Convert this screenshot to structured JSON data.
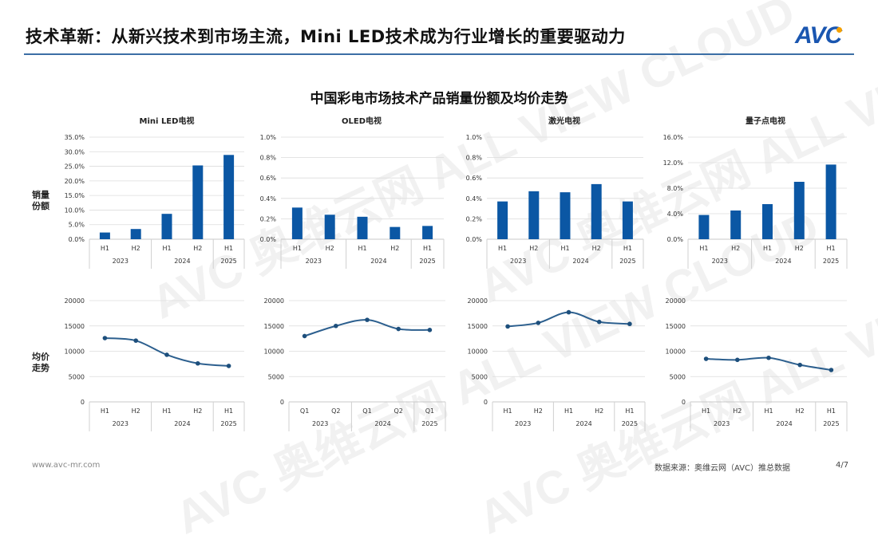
{
  "header": {
    "title": "技术革新：从新兴技术到市场主流，Mini LED技术成为行业增长的重要驱动力",
    "logo": "AVC"
  },
  "main_title": "中国彩电市场技术产品销量份额及均价走势",
  "row_labels": {
    "share": "销量\n份额",
    "price": "均价\n走势"
  },
  "watermark": "AVC 奥维云网 ALL VIEW CLOUD",
  "footer": {
    "website": "www.avc-mr.com",
    "source": "数据来源：奥维云网（AVC）推总数据",
    "page": "4/7"
  },
  "colors": {
    "bar": "#0b57a4",
    "line": "#2c5f8e",
    "marker": "#1d4f7c",
    "rule": "#3b6ea5"
  },
  "chart_data": [
    {
      "type": "bar",
      "title": "Mini LED电视",
      "categories": [
        "H1",
        "H2",
        "H1",
        "H2",
        "H1"
      ],
      "groups": [
        {
          "label": "2023",
          "span": 2
        },
        {
          "label": "2024",
          "span": 2
        },
        {
          "label": "2025",
          "span": 1
        }
      ],
      "values": [
        2.3,
        3.5,
        8.7,
        25.3,
        28.9
      ],
      "ylim": [
        0,
        35
      ],
      "yticks": [
        "0.0%",
        "5.0%",
        "10.0%",
        "15.0%",
        "20.0%",
        "25.0%",
        "30.0%",
        "35.0%"
      ],
      "unit": "%",
      "grid": true
    },
    {
      "type": "bar",
      "title": "OLED电视",
      "categories": [
        "H1",
        "H2",
        "H1",
        "H2",
        "H1"
      ],
      "groups": [
        {
          "label": "2023",
          "span": 2
        },
        {
          "label": "2024",
          "span": 2
        },
        {
          "label": "2025",
          "span": 1
        }
      ],
      "values": [
        0.31,
        0.24,
        0.22,
        0.12,
        0.13
      ],
      "ylim": [
        0,
        1
      ],
      "yticks": [
        "0.0%",
        "0.2%",
        "0.4%",
        "0.6%",
        "0.8%",
        "1.0%"
      ],
      "unit": "%",
      "grid": true
    },
    {
      "type": "bar",
      "title": "激光电视",
      "categories": [
        "H1",
        "H2",
        "H1",
        "H2",
        "H1"
      ],
      "groups": [
        {
          "label": "2023",
          "span": 2
        },
        {
          "label": "2024",
          "span": 2
        },
        {
          "label": "2025",
          "span": 1
        }
      ],
      "values": [
        0.37,
        0.47,
        0.46,
        0.54,
        0.37
      ],
      "ylim": [
        0,
        1
      ],
      "yticks": [
        "0.0%",
        "0.2%",
        "0.4%",
        "0.6%",
        "0.8%",
        "1.0%"
      ],
      "unit": "%",
      "grid": true
    },
    {
      "type": "bar",
      "title": "量子点电视",
      "categories": [
        "H1",
        "H2",
        "H1",
        "H2",
        "H1"
      ],
      "groups": [
        {
          "label": "2023",
          "span": 2
        },
        {
          "label": "2024",
          "span": 2
        },
        {
          "label": "2025",
          "span": 1
        }
      ],
      "values": [
        3.8,
        4.5,
        5.5,
        9.0,
        11.7
      ],
      "ylim": [
        0,
        16
      ],
      "yticks": [
        "0.0%",
        "4.0%",
        "8.0%",
        "12.0%",
        "16.0%"
      ],
      "unit": "%",
      "grid": true
    },
    {
      "type": "line",
      "categories": [
        "H1",
        "H2",
        "H1",
        "H2",
        "H1"
      ],
      "groups": [
        {
          "label": "2023",
          "span": 2
        },
        {
          "label": "2024",
          "span": 2
        },
        {
          "label": "2025",
          "span": 1
        }
      ],
      "values": [
        12600,
        12100,
        9300,
        7600,
        7100
      ],
      "ylim": [
        0,
        20000
      ],
      "yticks": [
        "0",
        "5000",
        "10000",
        "15000",
        "20000"
      ],
      "grid": true,
      "smooth": true
    },
    {
      "type": "line",
      "categories": [
        "Q1",
        "Q2",
        "Q1",
        "Q2",
        "Q1"
      ],
      "groups": [
        {
          "label": "2023",
          "span": 2
        },
        {
          "label": "2024",
          "span": 2
        },
        {
          "label": "2025",
          "span": 1
        }
      ],
      "values": [
        13000,
        15000,
        16200,
        14400,
        14200
      ],
      "ylim": [
        0,
        20000
      ],
      "yticks": [
        "0",
        "5000",
        "10000",
        "15000",
        "20000"
      ],
      "grid": true,
      "smooth": true
    },
    {
      "type": "line",
      "categories": [
        "H1",
        "H2",
        "H1",
        "H2",
        "H1"
      ],
      "groups": [
        {
          "label": "2023",
          "span": 2
        },
        {
          "label": "2024",
          "span": 2
        },
        {
          "label": "2025",
          "span": 1
        }
      ],
      "values": [
        14900,
        15600,
        17700,
        15800,
        15400
      ],
      "ylim": [
        0,
        20000
      ],
      "yticks": [
        "0",
        "5000",
        "10000",
        "15000",
        "20000"
      ],
      "grid": true,
      "smooth": true
    },
    {
      "type": "line",
      "categories": [
        "H1",
        "H2",
        "H1",
        "H2",
        "H1"
      ],
      "groups": [
        {
          "label": "2023",
          "span": 2
        },
        {
          "label": "2024",
          "span": 2
        },
        {
          "label": "2025",
          "span": 1
        }
      ],
      "values": [
        8500,
        8300,
        8700,
        7300,
        6300
      ],
      "ylim": [
        0,
        20000
      ],
      "yticks": [
        "0",
        "5000",
        "10000",
        "15000",
        "20000"
      ],
      "grid": true,
      "smooth": true
    }
  ]
}
